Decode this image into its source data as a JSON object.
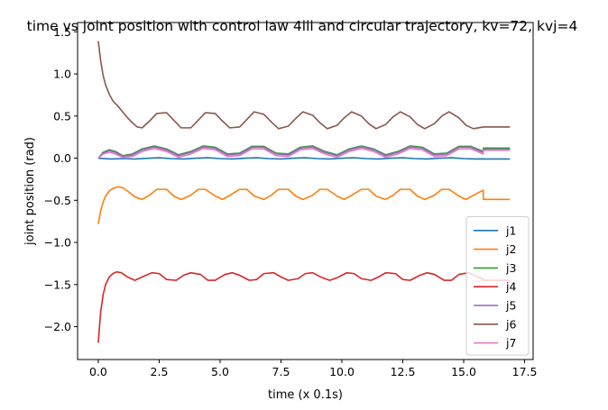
{
  "chart_data": {
    "type": "line",
    "title": "time vs joint position with control law 4iii and circular trajectory, kv=72, kvj=4",
    "xlabel": "time (x 0.1s)",
    "ylabel": "joint position (rad)",
    "xlim": [
      -0.85,
      17.85
    ],
    "ylim": [
      -2.39,
      1.61
    ],
    "xticks": [
      0.0,
      2.5,
      5.0,
      7.5,
      10.0,
      12.5,
      15.0,
      17.5
    ],
    "xtick_labels": [
      "0.0",
      "2.5",
      "5.0",
      "7.5",
      "10.0",
      "12.5",
      "15.0",
      "17.5"
    ],
    "yticks": [
      -2.0,
      -1.5,
      -1.0,
      -0.5,
      0.0,
      0.5,
      1.0,
      1.5
    ],
    "ytick_labels": [
      "−2.0",
      "−1.5",
      "−1.0",
      "−0.5",
      "0.0",
      "0.5",
      "1.0",
      "1.5"
    ],
    "grid": false,
    "legend_position": "lower-right",
    "series": [
      {
        "name": "j1",
        "color": "#1f77b4",
        "x": [
          0.0,
          0.5,
          1.0,
          1.5,
          2.0,
          2.5,
          3.0,
          3.5,
          4.0,
          4.5,
          5.0,
          5.5,
          6.0,
          6.5,
          7.0,
          7.5,
          8.0,
          8.5,
          9.0,
          9.5,
          10.0,
          10.5,
          11.0,
          11.5,
          12.0,
          12.5,
          13.0,
          13.5,
          14.0,
          14.5,
          15.0,
          15.5,
          15.8,
          15.81,
          16.9
        ],
        "y": [
          0.0,
          -0.01,
          -0.005,
          -0.01,
          -0.002,
          0.005,
          -0.005,
          -0.01,
          0.0,
          0.005,
          -0.005,
          -0.01,
          0.0,
          0.005,
          -0.005,
          -0.01,
          0.0,
          0.005,
          -0.005,
          -0.01,
          0.0,
          0.005,
          -0.005,
          -0.01,
          0.0,
          0.005,
          -0.005,
          -0.01,
          0.0,
          0.005,
          -0.005,
          -0.01,
          -0.008,
          -0.01,
          -0.01
        ]
      },
      {
        "name": "j2",
        "color": "#ff7f0e",
        "x": [
          0.0,
          0.1,
          0.2,
          0.3,
          0.45,
          0.6,
          0.8,
          1.0,
          1.2,
          1.5,
          1.8,
          2.1,
          2.4,
          2.8,
          3.1,
          3.4,
          3.8,
          4.1,
          4.4,
          4.8,
          5.1,
          5.4,
          5.8,
          6.1,
          6.4,
          6.8,
          7.1,
          7.4,
          7.8,
          8.1,
          8.4,
          8.8,
          9.1,
          9.4,
          9.8,
          10.1,
          10.4,
          10.8,
          11.1,
          11.4,
          11.8,
          12.1,
          12.4,
          12.8,
          13.1,
          13.4,
          13.8,
          14.1,
          14.4,
          14.8,
          15.1,
          15.4,
          15.8,
          15.81,
          16.9
        ],
        "y": [
          -0.78,
          -0.62,
          -0.52,
          -0.45,
          -0.39,
          -0.36,
          -0.34,
          -0.35,
          -0.39,
          -0.46,
          -0.49,
          -0.44,
          -0.37,
          -0.37,
          -0.45,
          -0.49,
          -0.44,
          -0.37,
          -0.37,
          -0.45,
          -0.49,
          -0.44,
          -0.37,
          -0.37,
          -0.45,
          -0.49,
          -0.44,
          -0.37,
          -0.37,
          -0.45,
          -0.49,
          -0.44,
          -0.37,
          -0.37,
          -0.45,
          -0.49,
          -0.44,
          -0.37,
          -0.37,
          -0.45,
          -0.49,
          -0.44,
          -0.37,
          -0.37,
          -0.45,
          -0.49,
          -0.44,
          -0.37,
          -0.37,
          -0.45,
          -0.49,
          -0.44,
          -0.38,
          -0.49,
          -0.49
        ]
      },
      {
        "name": "j3",
        "color": "#2ca02c",
        "x": [
          0.0,
          0.2,
          0.45,
          0.7,
          1.0,
          1.4,
          1.8,
          2.3,
          2.8,
          3.3,
          3.8,
          4.3,
          4.8,
          5.3,
          5.8,
          6.3,
          6.8,
          7.3,
          7.8,
          8.3,
          8.8,
          9.3,
          9.8,
          10.3,
          10.8,
          11.3,
          11.8,
          12.3,
          12.8,
          13.3,
          13.8,
          14.3,
          14.8,
          15.3,
          15.8,
          15.81,
          16.9
        ],
        "y": [
          0.0,
          0.07,
          0.1,
          0.08,
          0.03,
          0.05,
          0.11,
          0.145,
          0.11,
          0.04,
          0.08,
          0.145,
          0.13,
          0.05,
          0.06,
          0.14,
          0.14,
          0.06,
          0.05,
          0.13,
          0.145,
          0.08,
          0.04,
          0.11,
          0.145,
          0.11,
          0.04,
          0.08,
          0.145,
          0.13,
          0.05,
          0.06,
          0.14,
          0.14,
          0.08,
          0.12,
          0.12
        ]
      },
      {
        "name": "j4",
        "color": "#d62728",
        "x": [
          0.0,
          0.05,
          0.1,
          0.2,
          0.3,
          0.45,
          0.6,
          0.75,
          0.95,
          1.2,
          1.5,
          1.8,
          2.2,
          2.5,
          2.8,
          3.2,
          3.5,
          3.8,
          4.2,
          4.5,
          4.8,
          5.2,
          5.5,
          5.8,
          6.2,
          6.5,
          6.8,
          7.2,
          7.5,
          7.8,
          8.2,
          8.5,
          8.8,
          9.2,
          9.5,
          9.8,
          10.2,
          10.5,
          10.8,
          11.2,
          11.5,
          11.8,
          12.2,
          12.5,
          12.8,
          13.2,
          13.5,
          13.8,
          14.2,
          14.5,
          14.8,
          15.2,
          15.5,
          15.8,
          15.81,
          16.9
        ],
        "y": [
          -2.19,
          -2.0,
          -1.82,
          -1.62,
          -1.5,
          -1.41,
          -1.37,
          -1.35,
          -1.36,
          -1.41,
          -1.45,
          -1.41,
          -1.36,
          -1.37,
          -1.44,
          -1.45,
          -1.39,
          -1.36,
          -1.38,
          -1.45,
          -1.45,
          -1.38,
          -1.36,
          -1.39,
          -1.45,
          -1.44,
          -1.37,
          -1.36,
          -1.41,
          -1.45,
          -1.43,
          -1.37,
          -1.36,
          -1.42,
          -1.45,
          -1.42,
          -1.36,
          -1.37,
          -1.43,
          -1.45,
          -1.41,
          -1.36,
          -1.37,
          -1.44,
          -1.45,
          -1.39,
          -1.36,
          -1.38,
          -1.45,
          -1.45,
          -1.38,
          -1.36,
          -1.4,
          -1.44,
          -1.45,
          -1.45
        ]
      },
      {
        "name": "j5",
        "color": "#9467bd",
        "x": [
          0.0,
          0.2,
          0.45,
          0.7,
          1.0,
          1.4,
          1.8,
          2.3,
          2.8,
          3.3,
          3.8,
          4.3,
          4.8,
          5.3,
          5.8,
          6.3,
          6.8,
          7.3,
          7.8,
          8.3,
          8.8,
          9.3,
          9.8,
          10.3,
          10.8,
          11.3,
          11.8,
          12.3,
          12.8,
          13.3,
          13.8,
          14.3,
          14.8,
          15.3,
          15.8,
          15.81,
          16.9
        ],
        "y": [
          0.0,
          0.06,
          0.09,
          0.07,
          0.02,
          0.04,
          0.1,
          0.135,
          0.1,
          0.03,
          0.07,
          0.135,
          0.12,
          0.04,
          0.05,
          0.13,
          0.13,
          0.05,
          0.04,
          0.12,
          0.135,
          0.07,
          0.03,
          0.1,
          0.135,
          0.1,
          0.03,
          0.07,
          0.135,
          0.12,
          0.04,
          0.05,
          0.13,
          0.13,
          0.07,
          0.105,
          0.105
        ]
      },
      {
        "name": "j6",
        "color": "#8c564b",
        "x": [
          0.0,
          0.1,
          0.2,
          0.3,
          0.45,
          0.6,
          0.8,
          1.0,
          1.2,
          1.4,
          1.6,
          1.8,
          2.1,
          2.4,
          2.8,
          3.1,
          3.4,
          3.8,
          4.1,
          4.4,
          4.8,
          5.1,
          5.4,
          5.8,
          6.1,
          6.4,
          6.8,
          7.1,
          7.4,
          7.8,
          8.1,
          8.4,
          8.8,
          9.1,
          9.4,
          9.8,
          10.1,
          10.4,
          10.8,
          11.1,
          11.4,
          11.8,
          12.1,
          12.4,
          12.8,
          13.1,
          13.4,
          13.8,
          14.1,
          14.4,
          14.8,
          15.1,
          15.4,
          15.8,
          15.81,
          16.9
        ],
        "y": [
          1.39,
          1.15,
          0.98,
          0.87,
          0.76,
          0.68,
          0.62,
          0.55,
          0.48,
          0.42,
          0.37,
          0.36,
          0.44,
          0.53,
          0.54,
          0.45,
          0.36,
          0.36,
          0.45,
          0.54,
          0.53,
          0.44,
          0.36,
          0.37,
          0.46,
          0.55,
          0.52,
          0.43,
          0.35,
          0.38,
          0.47,
          0.55,
          0.51,
          0.42,
          0.35,
          0.39,
          0.48,
          0.55,
          0.5,
          0.41,
          0.35,
          0.4,
          0.49,
          0.55,
          0.49,
          0.4,
          0.35,
          0.41,
          0.5,
          0.55,
          0.48,
          0.39,
          0.35,
          0.37,
          0.37,
          0.37
        ]
      },
      {
        "name": "j7",
        "color": "#e377c2",
        "x": [
          0.0,
          0.2,
          0.45,
          0.7,
          1.0,
          1.4,
          1.8,
          2.3,
          2.8,
          3.3,
          3.8,
          4.3,
          4.8,
          5.3,
          5.8,
          6.3,
          6.8,
          7.3,
          7.8,
          8.3,
          8.8,
          9.3,
          9.8,
          10.3,
          10.8,
          11.3,
          11.8,
          12.3,
          12.8,
          13.3,
          13.8,
          14.3,
          14.8,
          15.3,
          15.8,
          15.81,
          16.9
        ],
        "y": [
          0.0,
          0.05,
          0.07,
          0.05,
          0.01,
          0.02,
          0.08,
          0.115,
          0.08,
          0.01,
          0.05,
          0.115,
          0.1,
          0.02,
          0.03,
          0.11,
          0.11,
          0.03,
          0.02,
          0.1,
          0.115,
          0.05,
          0.01,
          0.08,
          0.115,
          0.08,
          0.01,
          0.05,
          0.115,
          0.1,
          0.02,
          0.03,
          0.11,
          0.11,
          0.05,
          0.095,
          0.095
        ]
      }
    ]
  }
}
